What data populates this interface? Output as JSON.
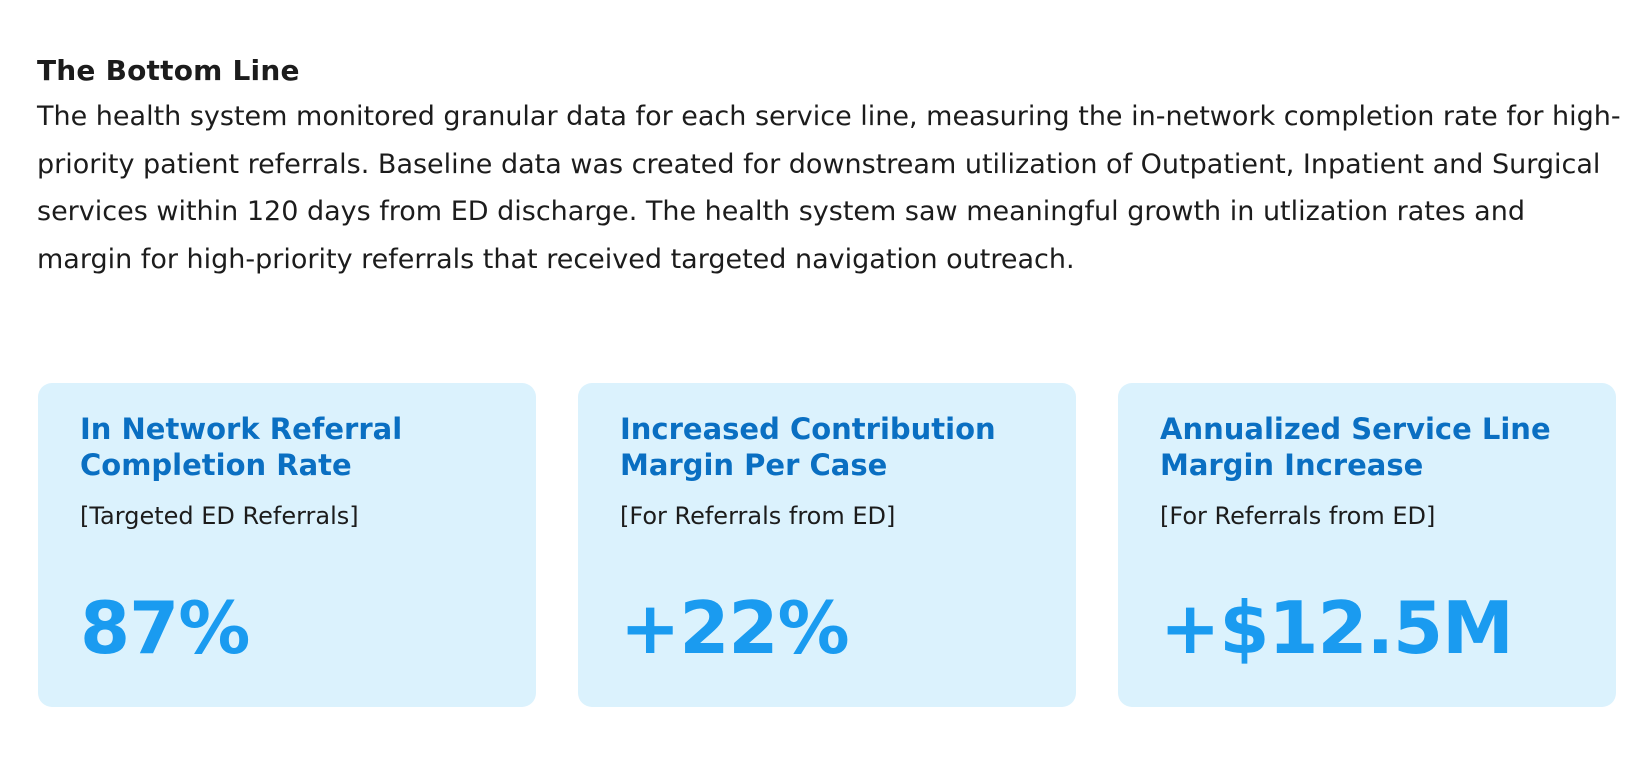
{
  "section": {
    "heading": "The Bottom Line",
    "body": "The health system monitored granular data for each service line, measuring the in-network completion rate for high-priority patient referrals. Baseline data was created for downstream utilization of Outpatient, Inpatient and Surgical services within 120 days from ED discharge. The health system saw meaningful growth in utlization rates and margin for high-priority referrals that received targeted navigation outreach."
  },
  "cards": [
    {
      "title": "In Network Referral Completion Rate",
      "subtitle": "[Targeted ED Referrals]",
      "value": "87%"
    },
    {
      "title": "Increased Contribution Margin Per Case",
      "subtitle": "[For Referrals from ED]",
      "value": "+22%"
    },
    {
      "title": "Annualized Service Line Margin Increase",
      "subtitle": "[For Referrals from ED]",
      "value": "+$12.5M"
    }
  ],
  "colors": {
    "card_background": "#dbf2fd",
    "title": "#0a6fc2",
    "value": "#1a9bf0",
    "text": "#1c1c1c"
  }
}
